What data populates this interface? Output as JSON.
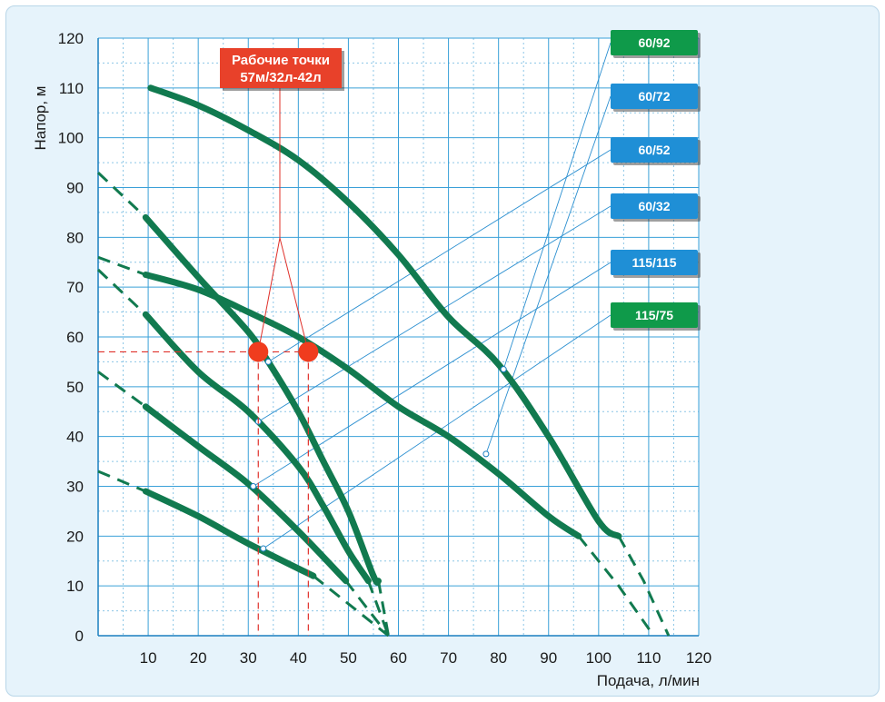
{
  "chart_data": {
    "type": "line",
    "xlabel": "Подача, л/мин",
    "ylabel": "Напор, м",
    "xlim": [
      0,
      120
    ],
    "ylim": [
      0,
      120
    ],
    "xticks": [
      10,
      20,
      30,
      40,
      50,
      60,
      70,
      80,
      90,
      100,
      110,
      120
    ],
    "yticks": [
      0,
      10,
      20,
      30,
      40,
      50,
      60,
      70,
      80,
      90,
      100,
      110,
      120
    ],
    "grid": true,
    "colors": {
      "curve": "#117a4f",
      "grid": "#3aa0d8",
      "grid_minor": "#8cc6e6",
      "tag_green": "#0f9a4a",
      "tag_blue": "#1f8fd6",
      "point": "#f03c1e",
      "guide": "#e0302a",
      "callout": "#e8412a"
    },
    "annotation": {
      "lines": [
        "Рабочие точки",
        "57м/32л-42л"
      ],
      "head": 57,
      "flows": [
        32,
        42
      ]
    },
    "series": [
      {
        "label": "60/92",
        "tag_color": "green",
        "label_point": [
          81,
          53.5
        ],
        "points": [
          [
            10.5,
            110
          ],
          [
            20,
            106.5
          ],
          [
            30,
            101.5
          ],
          [
            40,
            95.5
          ],
          [
            50,
            87
          ],
          [
            60,
            76.5
          ],
          [
            70,
            64
          ],
          [
            80,
            54.5
          ],
          [
            90,
            40
          ],
          [
            100,
            23
          ],
          [
            104,
            20
          ]
        ],
        "extension": [
          [
            104,
            20
          ],
          [
            109,
            11
          ],
          [
            114,
            0
          ]
        ]
      },
      {
        "label": "60/72",
        "tag_color": "blue",
        "label_point": [
          77.5,
          36.5
        ],
        "points": [
          [
            9.5,
            72.5
          ],
          [
            20,
            69.5
          ],
          [
            30,
            65
          ],
          [
            40,
            60
          ],
          [
            50,
            53.5
          ],
          [
            60,
            46
          ],
          [
            70,
            40
          ],
          [
            80,
            32.5
          ],
          [
            90,
            24
          ],
          [
            96,
            20
          ]
        ],
        "extension": [
          [
            0,
            76
          ],
          [
            9.5,
            72.5
          ]
        ],
        "extension2": [
          [
            96,
            20
          ],
          [
            104,
            10
          ],
          [
            111,
            0
          ]
        ]
      },
      {
        "label": "60/52",
        "tag_color": "blue",
        "label_point": [
          34,
          55
        ],
        "points": [
          [
            9.5,
            84
          ],
          [
            20,
            72
          ],
          [
            30,
            61
          ],
          [
            34,
            55
          ],
          [
            40,
            45
          ],
          [
            45,
            35
          ],
          [
            50,
            25
          ],
          [
            55,
            12
          ],
          [
            56,
            11
          ]
        ],
        "extension": [
          [
            0,
            93
          ],
          [
            9.5,
            84
          ]
        ],
        "extension2": [
          [
            56,
            11
          ],
          [
            58,
            0
          ]
        ]
      },
      {
        "label": "60/32",
        "tag_color": "blue",
        "label_point": [
          32,
          43
        ],
        "points": [
          [
            9.5,
            64.5
          ],
          [
            20,
            53
          ],
          [
            30,
            45
          ],
          [
            40,
            34
          ],
          [
            45,
            26
          ],
          [
            50,
            17
          ],
          [
            54,
            11
          ]
        ],
        "extension": [
          [
            0,
            73.5
          ],
          [
            9.5,
            64.5
          ]
        ],
        "extension2": [
          [
            54,
            11
          ],
          [
            58,
            0
          ]
        ]
      },
      {
        "label": "115/115",
        "tag_color": "blue",
        "label_point": [
          31,
          30
        ],
        "points": [
          [
            9.5,
            46
          ],
          [
            20,
            38
          ],
          [
            30,
            30.5
          ],
          [
            40,
            21
          ],
          [
            49.5,
            11
          ]
        ],
        "extension": [
          [
            0,
            53
          ],
          [
            9.5,
            46
          ]
        ],
        "extension2": [
          [
            49.5,
            11
          ],
          [
            58,
            0
          ]
        ]
      },
      {
        "label": "115/75",
        "tag_color": "green",
        "label_point": [
          33,
          17.5
        ],
        "points": [
          [
            9.5,
            29
          ],
          [
            20,
            24
          ],
          [
            30,
            18.5
          ],
          [
            43,
            12
          ]
        ],
        "extension": [
          [
            0,
            33
          ],
          [
            9.5,
            29
          ]
        ],
        "extension2": [
          [
            43,
            12
          ],
          [
            58,
            0
          ]
        ]
      }
    ]
  }
}
